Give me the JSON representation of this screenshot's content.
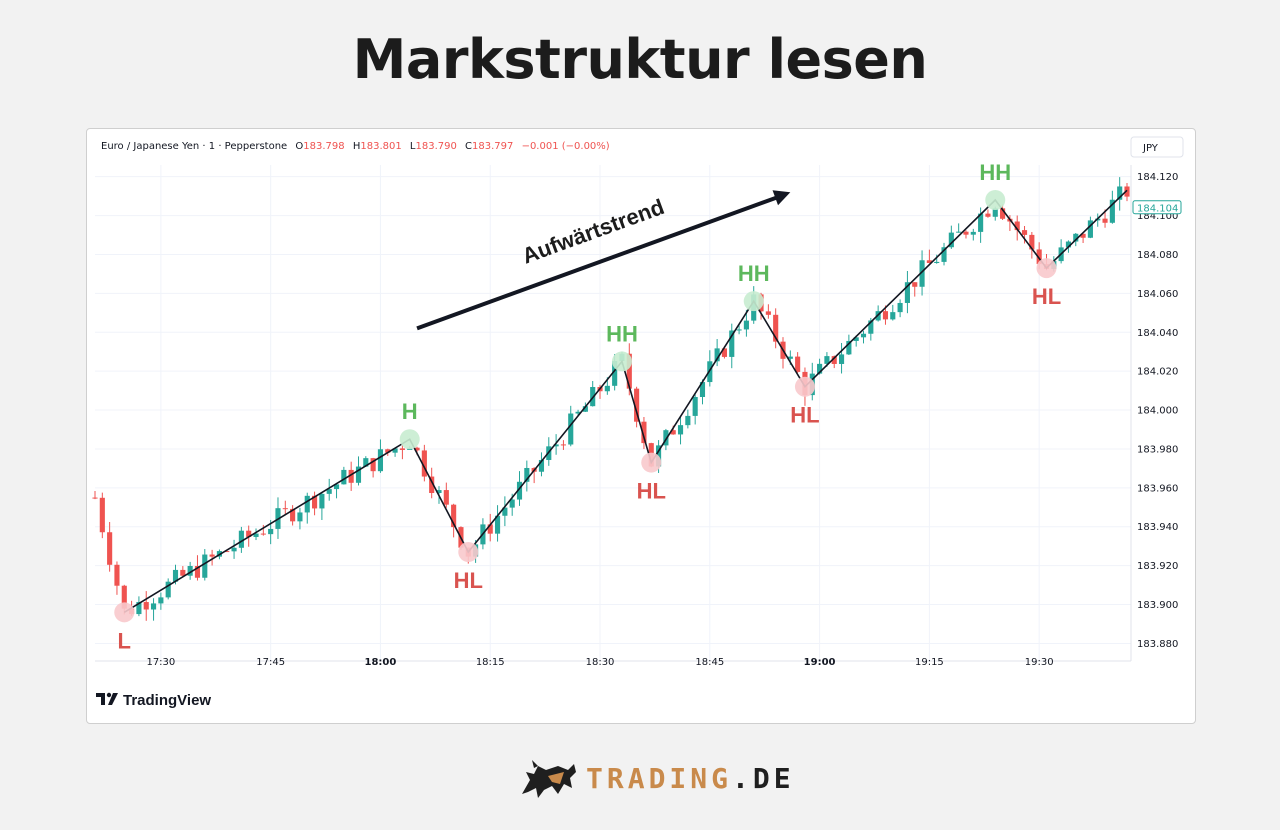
{
  "page": {
    "title": "Markstruktur lesen"
  },
  "chart_header": {
    "symbol": "Euro / Japanese Yen · 1 · Pepperstone",
    "o_label": "O",
    "o_value": "183.798",
    "h_label": "H",
    "h_value": "183.801",
    "l_label": "L",
    "l_value": "183.790",
    "c_label": "C",
    "c_value": "183.797",
    "change": "−0.001 (−0.00%)",
    "currency": "JPY"
  },
  "branding": {
    "tradingview": "TradingView",
    "site_part1": "TRADING",
    "site_part2": ".DE"
  },
  "colors": {
    "up": "#26a69a",
    "down": "#ef5350",
    "high_label": "#5cb85c",
    "low_label": "#d9534f",
    "high_marker": "#c8ecd0",
    "low_marker": "#f8c9cc",
    "price_tag": "#26a69a",
    "header_value": "#ef5350"
  },
  "chart_data": {
    "type": "candlestick",
    "title": "Markstruktur lesen",
    "instrument": "Euro / Japanese Yen",
    "interval": "1",
    "ylim": [
      183.872,
      184.126
    ],
    "y_ticks": [
      "184.120",
      "184.100",
      "184.080",
      "184.060",
      "184.040",
      "184.020",
      "184.000",
      "183.980",
      "183.960",
      "183.940",
      "183.920",
      "183.900",
      "183.880"
    ],
    "x_start": "17:21",
    "x_end": "19:42",
    "x_ticks": [
      {
        "time": "17:30",
        "label": "17:30",
        "bold": false
      },
      {
        "time": "17:45",
        "label": "17:45",
        "bold": false
      },
      {
        "time": "18:00",
        "label": "18:00",
        "bold": true
      },
      {
        "time": "18:15",
        "label": "18:15",
        "bold": false
      },
      {
        "time": "18:30",
        "label": "18:30",
        "bold": false
      },
      {
        "time": "18:45",
        "label": "18:45",
        "bold": false
      },
      {
        "time": "19:00",
        "label": "19:00",
        "bold": true
      },
      {
        "time": "19:15",
        "label": "19:15",
        "bold": false
      },
      {
        "time": "19:30",
        "label": "19:30",
        "bold": false
      }
    ],
    "current_price": "184.104",
    "grid": true,
    "structure_points": [
      {
        "label": "L",
        "time": "17:25",
        "price": 183.896,
        "kind": "low"
      },
      {
        "label": "H",
        "time": "18:04",
        "price": 183.985,
        "kind": "high"
      },
      {
        "label": "HL",
        "time": "18:12",
        "price": 183.927,
        "kind": "low"
      },
      {
        "label": "HH",
        "time": "18:33",
        "price": 184.025,
        "kind": "high"
      },
      {
        "label": "HL",
        "time": "18:37",
        "price": 183.973,
        "kind": "low"
      },
      {
        "label": "HH",
        "time": "18:51",
        "price": 184.056,
        "kind": "high"
      },
      {
        "label": "HL",
        "time": "18:58",
        "price": 184.012,
        "kind": "low"
      },
      {
        "label": "HH",
        "time": "19:24",
        "price": 184.108,
        "kind": "high"
      },
      {
        "label": "HL",
        "time": "19:31",
        "price": 184.073,
        "kind": "low"
      }
    ],
    "structure_line_end": {
      "time": "19:42",
      "price": 184.113
    },
    "trend_label": "Aufwärtstrend",
    "trend_arrow": {
      "from": {
        "time": "18:05",
        "price": 184.042
      },
      "to": {
        "time": "18:56",
        "price": 184.112
      }
    }
  }
}
